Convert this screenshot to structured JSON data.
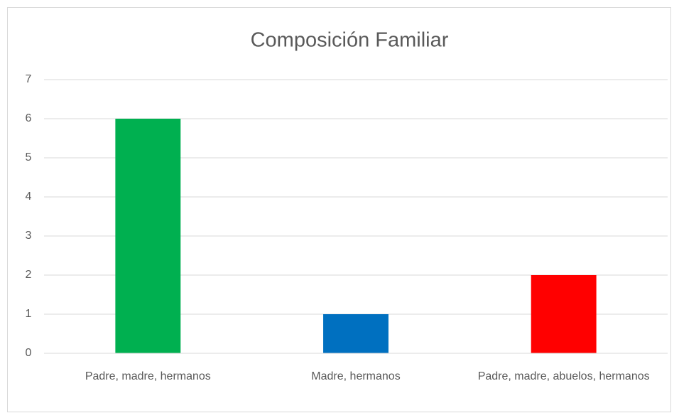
{
  "chart_data": {
    "type": "bar",
    "title": "Composición Familiar",
    "categories": [
      "Padre, madre, hermanos",
      "Madre, hermanos",
      "Padre, madre, abuelos, hermanos"
    ],
    "values": [
      6,
      1,
      2
    ],
    "colors": [
      "#00b050",
      "#0070c0",
      "#ff0000"
    ],
    "ylim": [
      0,
      7
    ],
    "yticks": [
      0,
      1,
      2,
      3,
      4,
      5,
      6,
      7
    ],
    "grid": true
  }
}
